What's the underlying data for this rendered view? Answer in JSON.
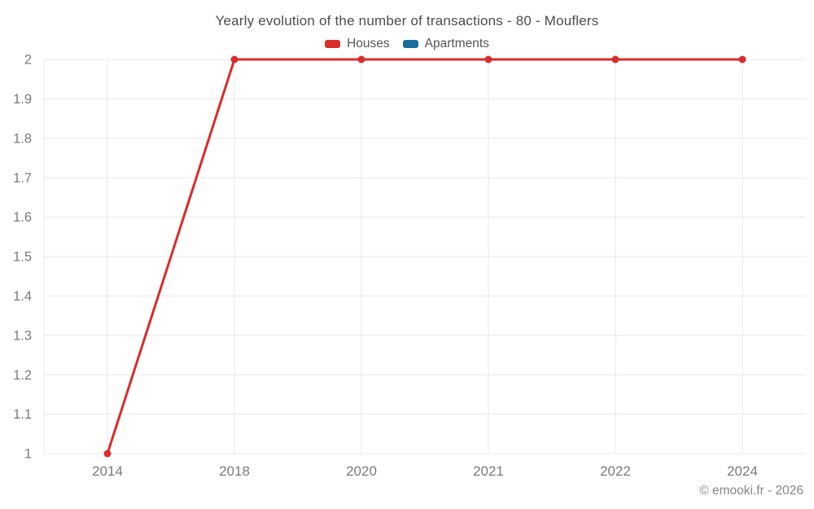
{
  "header": {
    "title": "Yearly evolution of the number of transactions - 80 - Mouflers"
  },
  "legend": {
    "items": [
      {
        "label": "Houses",
        "color": "#d92c2c"
      },
      {
        "label": "Apartments",
        "color": "#1a6e9c"
      }
    ]
  },
  "footer": {
    "copyright": "© emooki.fr - 2026"
  },
  "chart_data": {
    "type": "line",
    "title": "Yearly evolution of the number of transactions - 80 - Mouflers",
    "categories": [
      "2014",
      "2018",
      "2020",
      "2021",
      "2022",
      "2024"
    ],
    "series": [
      {
        "name": "Houses",
        "color": "#d92c2c",
        "values": [
          1,
          2,
          2,
          2,
          2,
          2
        ]
      },
      {
        "name": "Apartments",
        "color": "#1a6e9c",
        "values": []
      }
    ],
    "xlabel": "",
    "ylabel": "",
    "ylim": [
      1,
      2
    ],
    "yticks": [
      "1",
      "1.1",
      "1.2",
      "1.3",
      "1.4",
      "1.5",
      "1.6",
      "1.7",
      "1.8",
      "1.9",
      "2"
    ],
    "grid": true,
    "legend_position": "top",
    "style": {
      "grid_color": "#e8e8e8",
      "tick_label_color": "#7a7a7a",
      "title_color": "#4d4d4d",
      "background": "#ffffff",
      "marker_radius": 4.5,
      "line_width": 3
    }
  }
}
